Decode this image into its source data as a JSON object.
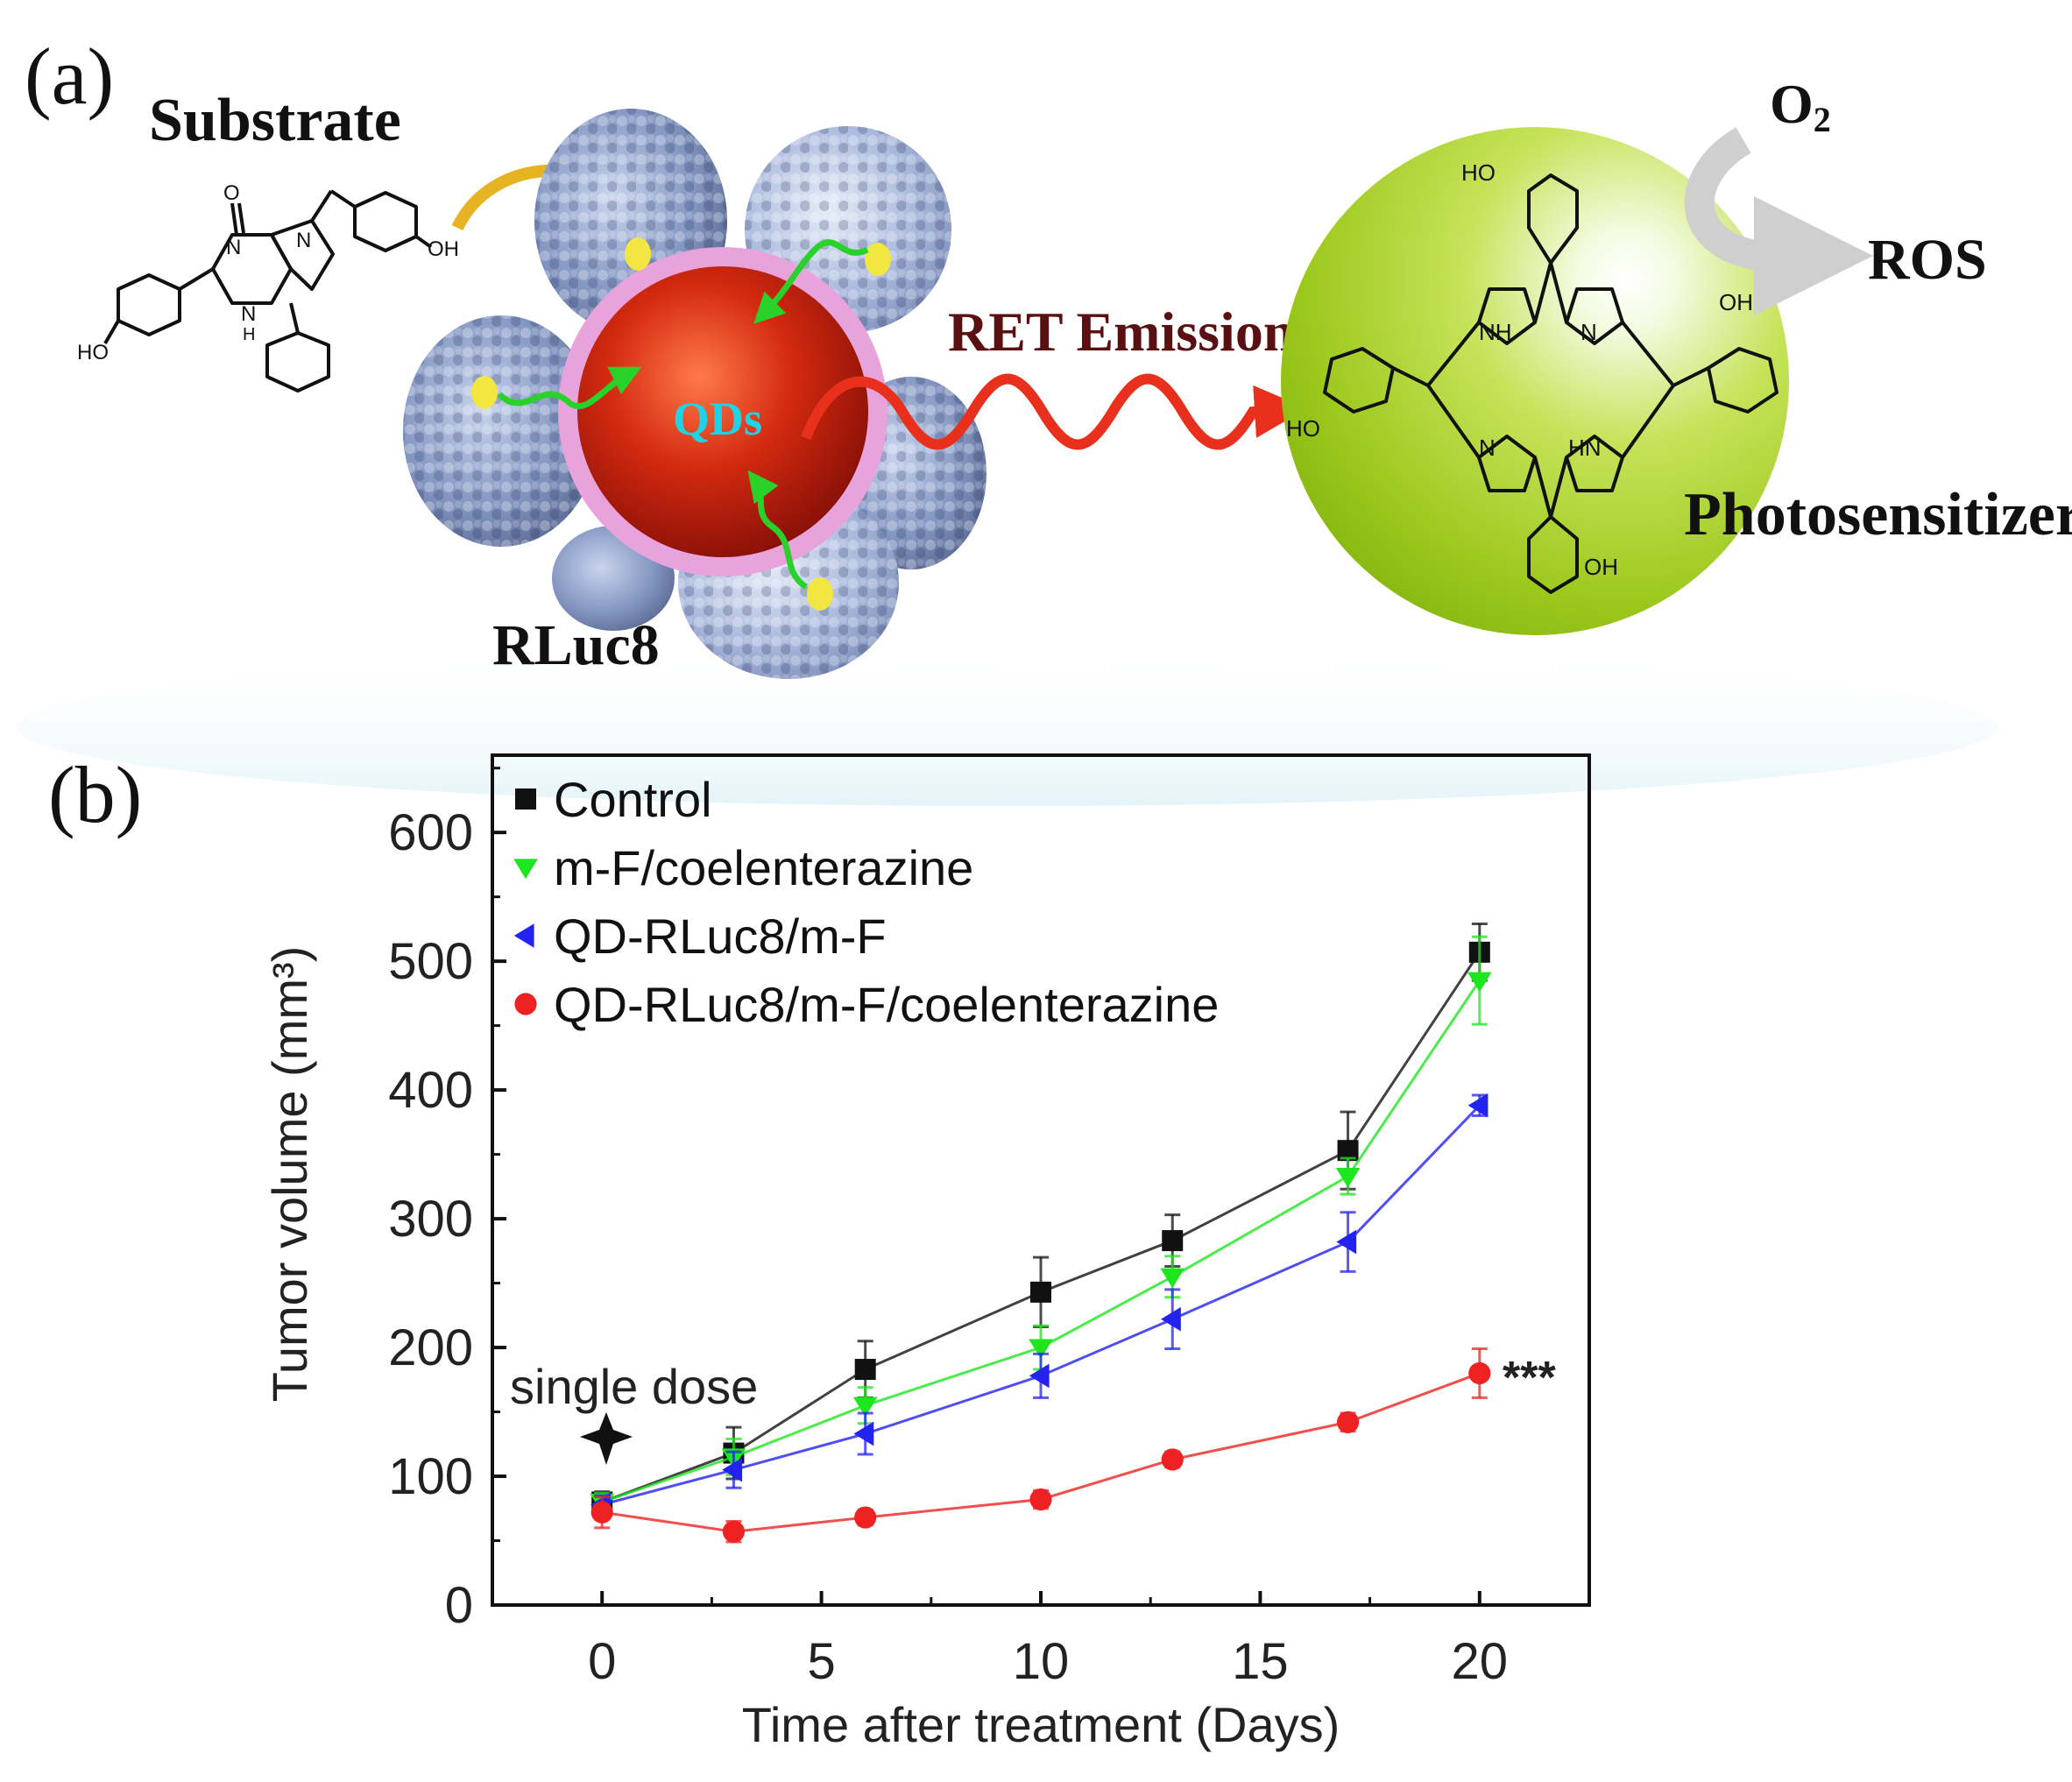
{
  "panel_a": {
    "label": "(a)",
    "substrate_label": "Substrate",
    "qds_label": "QDs",
    "rluc8_label": "RLuc8",
    "ret_label": "RET Emission",
    "o2_label": "O",
    "o2_subscript": "2",
    "ros_label": "ROS",
    "photosensitizer_label": "Photosensitizer",
    "atom_labels": [
      "O",
      "N",
      "N",
      "N",
      "H",
      "OH",
      "HO",
      "NH",
      "N",
      "N",
      "HN",
      "HO",
      "OH",
      "HO",
      "OH"
    ],
    "colors": {
      "qd_core": "#c81e0a",
      "qd_shell": "#e9a3dc",
      "qd_text": "#1fd3e6",
      "protein": "#7f92bd",
      "wave": "#e8301c",
      "sphere": "#a8cf1e",
      "yellow_dot": "#f2e640",
      "green_arrow": "#2bd12b",
      "substrate_arrow": "#e6b422"
    }
  },
  "panel_b": {
    "label": "(b)",
    "annotation": "single dose",
    "significance": "***",
    "colors": {
      "Control": "#111111",
      "m-F/coelenterazine": "#1ee61e",
      "QD-RLuc8/m-F": "#2323ee",
      "QD-RLuc8/m-F/coelenterazine": "#ee2222"
    }
  },
  "chart_data": {
    "type": "line",
    "title": "",
    "xlabel": "Time after treatment (Days)",
    "ylabel": "Tumor volume (mm³)",
    "xlim": [
      -2.5,
      22.5
    ],
    "ylim": [
      0,
      660
    ],
    "xticks": [
      0,
      5,
      10,
      15,
      20
    ],
    "yticks": [
      0,
      100,
      200,
      300,
      400,
      500,
      600
    ],
    "grid": false,
    "legend_position": "top-left",
    "x": [
      0,
      3,
      6,
      10,
      13,
      17,
      20
    ],
    "series": [
      {
        "name": "Control",
        "marker": "square",
        "values": [
          80,
          118,
          183,
          243,
          283,
          353,
          507
        ],
        "errors": [
          8,
          20,
          22,
          27,
          20,
          30,
          22
        ]
      },
      {
        "name": "m-F/coelenterazine",
        "marker": "triangle-down",
        "values": [
          80,
          115,
          155,
          200,
          255,
          333,
          485
        ],
        "errors": [
          7,
          14,
          14,
          17,
          16,
          14,
          34
        ]
      },
      {
        "name": "QD-RLuc8/m-F",
        "marker": "triangle-left",
        "values": [
          78,
          105,
          133,
          178,
          222,
          282,
          388
        ],
        "errors": [
          7,
          14,
          16,
          17,
          23,
          23,
          8
        ]
      },
      {
        "name": "QD-RLuc8/m-F/coelenterazine",
        "marker": "circle",
        "values": [
          72,
          57,
          68,
          82,
          113,
          142,
          180
        ],
        "errors": [
          12,
          8,
          6,
          7,
          6,
          7,
          19
        ]
      }
    ]
  }
}
